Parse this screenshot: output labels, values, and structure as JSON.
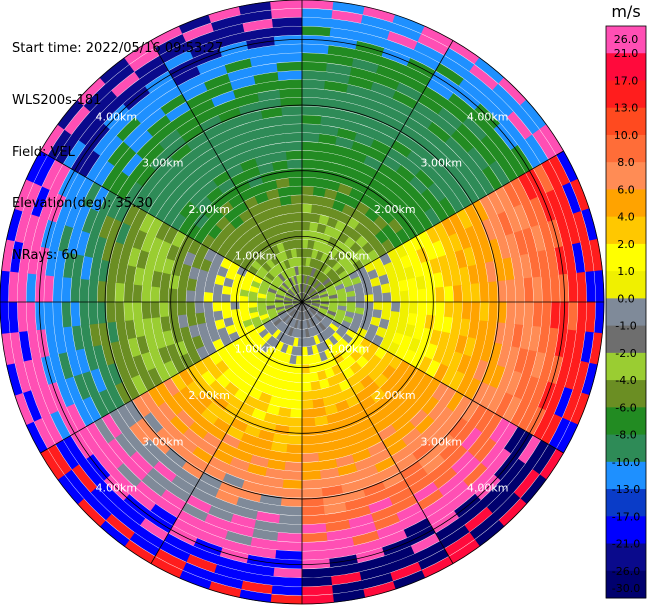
{
  "header": {
    "start_time": "Start time: 2022/05/16 09:53:27",
    "instrument": "WLS200s-181",
    "field": "Field: VEL",
    "elevation": "Elevation(deg): 35.30",
    "nrays": "NRays: 60"
  },
  "chart_data": {
    "type": "heatmap",
    "projection": "polar-ppi",
    "field": "VEL",
    "units": "m/s",
    "range_max_km": 4.6,
    "range_ring_labels": [
      "1.00km",
      "2.00km",
      "3.00km",
      "4.00km"
    ],
    "range_ring_km": [
      1,
      2,
      3,
      4
    ],
    "grid": true,
    "n_rays": 60,
    "colorbar": {
      "title": "m/s",
      "placement": "right",
      "tick_labels": [
        "26.0",
        "21.0",
        "17.0",
        "13.0",
        "10.0",
        "8.0",
        "6.0",
        "4.0",
        "2.0",
        "1.0",
        "0.0",
        "-1.0",
        "-2.0",
        "-4.0",
        "-6.0",
        "-8.0",
        "-10.0",
        "-13.0",
        "-17.0",
        "-21.0",
        "-26.0",
        "-30.0"
      ],
      "colors": [
        "#ff4fb4",
        "#ff0a3c",
        "#ff1d1d",
        "#ff4a1f",
        "#ff6d38",
        "#ff8c55",
        "#ffa300",
        "#ffc800",
        "#ffff00",
        "#f0f000",
        "#7f8a99",
        "#6e6e6e",
        "#9acd32",
        "#6b8e23",
        "#228b22",
        "#2e8b57",
        "#1e90ff",
        "#0a3cc8",
        "#0000ff",
        "#0a0a8c",
        "#00006e"
      ]
    },
    "sectors": [
      {
        "azimuth_deg": [
          0,
          60
        ],
        "pattern": [
          "#6e6e6e",
          "#6b8e23",
          "#9acd32",
          "#6b8e23",
          "#228b22",
          "#228b22",
          "#2e8b57",
          "#2e8b57",
          "#228b22",
          "#1e90ff",
          "#ff4fb4"
        ]
      },
      {
        "azimuth_deg": [
          60,
          120
        ],
        "pattern": [
          "#6e6e6e",
          "#9acd32",
          "#7f8a99",
          "#f0f000",
          "#ffff00",
          "#ffc800",
          "#ffa300",
          "#ff8c55",
          "#ff6d38",
          "#ff1d1d",
          "#0000ff"
        ]
      },
      {
        "azimuth_deg": [
          120,
          180
        ],
        "pattern": [
          "#6e6e6e",
          "#7f8a99",
          "#ffff00",
          "#ffc800",
          "#ffa300",
          "#ffa300",
          "#ff8c55",
          "#ff6d38",
          "#ff4fb4",
          "#00006e",
          "#ff0a3c"
        ]
      },
      {
        "azimuth_deg": [
          180,
          240
        ],
        "pattern": [
          "#6e6e6e",
          "#7f8a99",
          "#ffff00",
          "#ffff00",
          "#ffc800",
          "#ffa300",
          "#ff8c55",
          "#7f8a99",
          "#ff4fb4",
          "#0000ff",
          "#ff1d1d"
        ]
      },
      {
        "azimuth_deg": [
          240,
          300
        ],
        "pattern": [
          "#6e6e6e",
          "#9acd32",
          "#ffff00",
          "#7f8a99",
          "#6b8e23",
          "#9acd32",
          "#6b8e23",
          "#2e8b57",
          "#1e90ff",
          "#ff4fb4",
          "#0000ff"
        ]
      },
      {
        "azimuth_deg": [
          300,
          360
        ],
        "pattern": [
          "#6e6e6e",
          "#9acd32",
          "#6b8e23",
          "#6b8e23",
          "#228b22",
          "#2e8b57",
          "#2e8b57",
          "#228b22",
          "#1e90ff",
          "#0a0a8c",
          "#ff4fb4"
        ]
      }
    ]
  }
}
